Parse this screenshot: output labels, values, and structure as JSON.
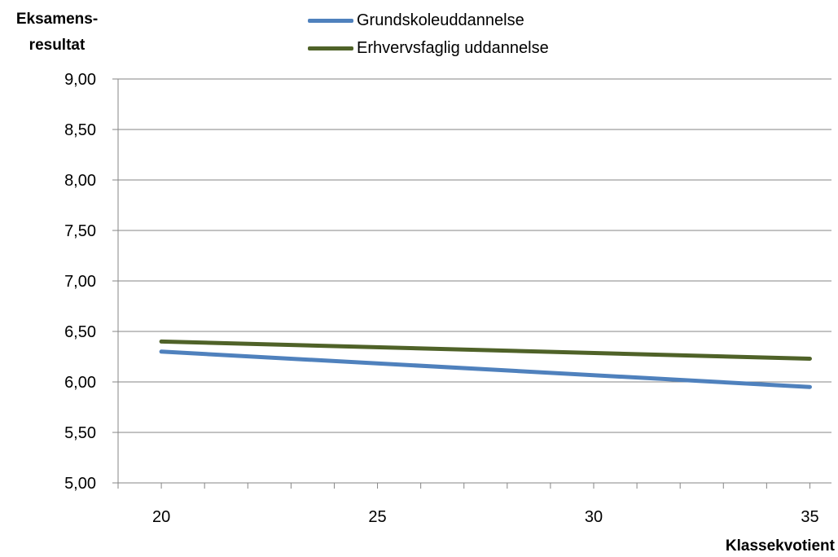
{
  "chart_data": {
    "type": "line",
    "ylabel_lines": [
      "Eksamens-",
      "resultat"
    ],
    "xlabel": "Klassekvotient",
    "x": [
      20,
      35
    ],
    "x_ticks": [
      20,
      25,
      30,
      35
    ],
    "x_minor_step": 1,
    "xlim": [
      19,
      35.5
    ],
    "ylim": [
      5.0,
      9.0
    ],
    "y_ticks": [
      "5,00",
      "5,50",
      "6,00",
      "6,50",
      "7,00",
      "7,50",
      "8,00",
      "8,50",
      "9,00"
    ],
    "grid": true,
    "legend_position": "top",
    "series": [
      {
        "name": "Grundskoleuddannelse",
        "color": "#4f81bd",
        "values": [
          6.3,
          5.95
        ]
      },
      {
        "name": "Erhvervsfaglig uddannelse",
        "color": "#4f6228",
        "values": [
          6.4,
          6.23
        ]
      }
    ]
  }
}
